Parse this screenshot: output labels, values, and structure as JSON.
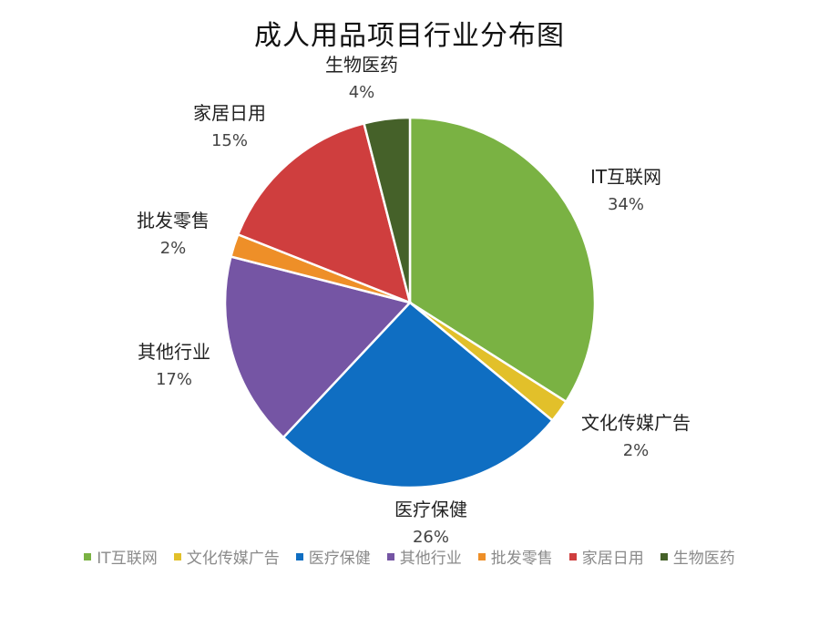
{
  "chart_data": {
    "type": "pie",
    "title": "成人用品项目行业分布图",
    "slices": [
      {
        "label": "IT互联网",
        "value": 34,
        "value_label": "34%",
        "color": "#7ab243"
      },
      {
        "label": "文化传媒广告",
        "value": 2,
        "value_label": "2%",
        "color": "#e2c02a"
      },
      {
        "label": "医疗保健",
        "value": 26,
        "value_label": "26%",
        "color": "#0f6ec2"
      },
      {
        "label": "其他行业",
        "value": 17,
        "value_label": "17%",
        "color": "#7555a4"
      },
      {
        "label": "批发零售",
        "value": 2,
        "value_label": "2%",
        "color": "#ee8f28"
      },
      {
        "label": "家居日用",
        "value": 15,
        "value_label": "15%",
        "color": "#cf3e3e"
      },
      {
        "label": "生物医药",
        "value": 4,
        "value_label": "4%",
        "color": "#456129"
      }
    ],
    "legend_position": "bottom"
  }
}
